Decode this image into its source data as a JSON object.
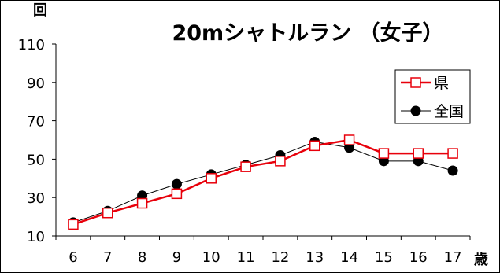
{
  "chart_data": {
    "type": "line",
    "title": "20mシャトルラン （女子）",
    "ylabel": "回",
    "xlabel": "歳",
    "x": [
      6,
      7,
      8,
      9,
      10,
      11,
      12,
      13,
      14,
      15,
      16,
      17
    ],
    "ylim": [
      10,
      110
    ],
    "yticks": [
      10,
      30,
      50,
      70,
      90,
      110
    ],
    "grid": false,
    "legend_position": "top-right",
    "series": [
      {
        "name": "県",
        "color": "#e8000b",
        "marker": "open-square",
        "values": [
          16,
          22,
          27,
          32,
          40,
          46,
          49,
          57,
          60,
          53,
          53,
          53
        ]
      },
      {
        "name": "全国",
        "color": "#000000",
        "marker": "filled-circle",
        "values": [
          17,
          23,
          31,
          37,
          42,
          47,
          52,
          59,
          56,
          49,
          49,
          44
        ]
      }
    ]
  }
}
